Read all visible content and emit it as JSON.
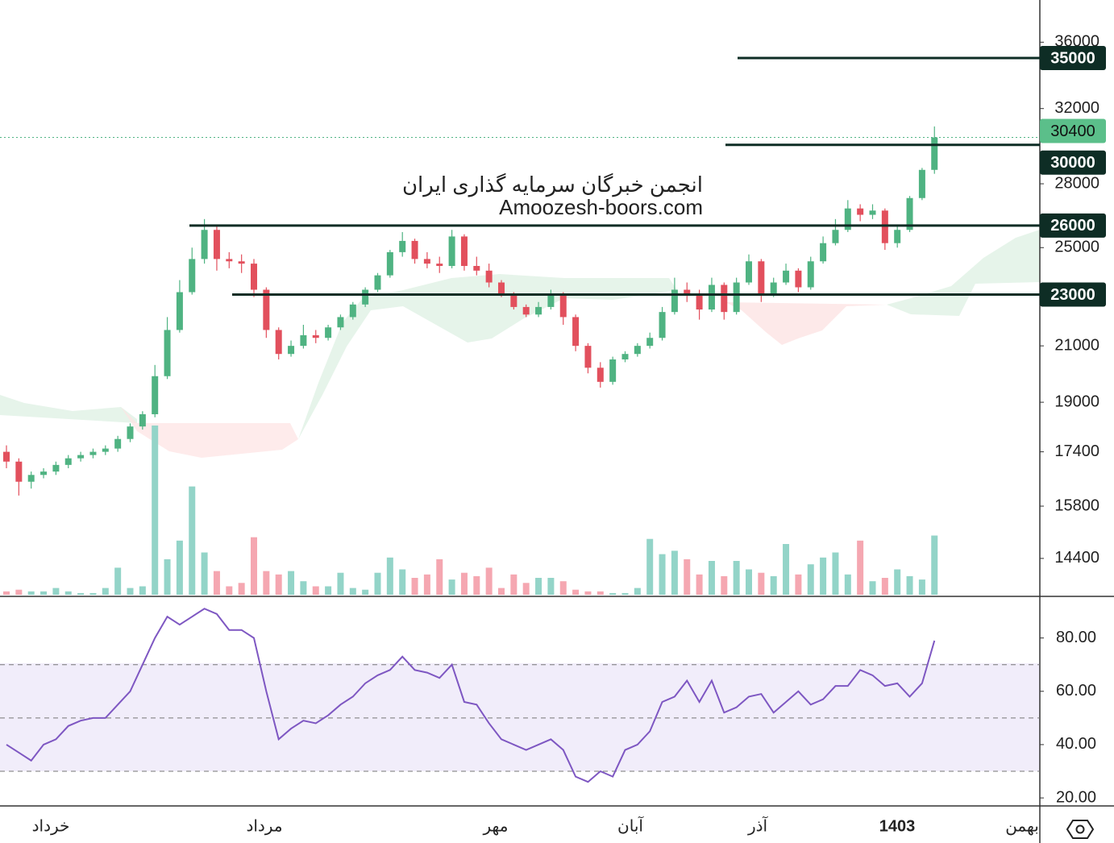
{
  "chart_data": [
    {
      "type": "candlestick",
      "watermark": [
        "انجمن خبرگان سرمایه گذاری ایران",
        "Amoozesh-boors.com"
      ],
      "log": true,
      "ylim": [
        13500,
        38800
      ],
      "yticks": [
        36000,
        32000,
        28000,
        25000,
        21000,
        19000,
        17400,
        15800,
        14400
      ],
      "levels": [
        35000,
        30000,
        26000,
        23000
      ],
      "last_price": 30400,
      "time_labels": [
        "خرداد",
        "مرداد",
        "مهر",
        "آبان",
        "آذر",
        "1403",
        "بهمن"
      ],
      "up_color": "#4fb382",
      "down_color": "#e2505d",
      "volume_up_color": "#93d4c8",
      "volume_down_color": "#f5a7b1",
      "vlim": [
        0,
        100
      ],
      "ohlc": [
        [
          17400,
          17600,
          16900,
          17100
        ],
        [
          17100,
          17200,
          16100,
          16500
        ],
        [
          16500,
          16800,
          16300,
          16700
        ],
        [
          16700,
          16900,
          16600,
          16800
        ],
        [
          16800,
          17100,
          16700,
          17000
        ],
        [
          17000,
          17300,
          16900,
          17200
        ],
        [
          17200,
          17400,
          17100,
          17300
        ],
        [
          17300,
          17500,
          17200,
          17400
        ],
        [
          17400,
          17600,
          17300,
          17500
        ],
        [
          17500,
          17900,
          17400,
          17800
        ],
        [
          17800,
          18300,
          17700,
          18200
        ],
        [
          18200,
          18700,
          18100,
          18600
        ],
        [
          18600,
          20300,
          18500,
          19900
        ],
        [
          19900,
          22100,
          19800,
          21600
        ],
        [
          21600,
          23600,
          21500,
          23100
        ],
        [
          23100,
          25000,
          23000,
          24500
        ],
        [
          24500,
          26300,
          24300,
          25800
        ],
        [
          25800,
          26000,
          24000,
          24500
        ],
        [
          24500,
          24800,
          24100,
          24400
        ],
        [
          24400,
          24700,
          23900,
          24300
        ],
        [
          24300,
          24500,
          22900,
          23200
        ],
        [
          23200,
          23300,
          21300,
          21600
        ],
        [
          21600,
          21700,
          20500,
          20700
        ],
        [
          20700,
          21200,
          20600,
          21000
        ],
        [
          21000,
          21800,
          20900,
          21400
        ],
        [
          21400,
          21600,
          21100,
          21300
        ],
        [
          21300,
          21800,
          21200,
          21700
        ],
        [
          21700,
          22200,
          21600,
          22100
        ],
        [
          22100,
          22700,
          22000,
          22600
        ],
        [
          22600,
          23300,
          22500,
          23200
        ],
        [
          23200,
          23900,
          23100,
          23800
        ],
        [
          23800,
          24900,
          23700,
          24800
        ],
        [
          24800,
          25700,
          24600,
          25300
        ],
        [
          25300,
          25400,
          24300,
          24500
        ],
        [
          24500,
          24800,
          24100,
          24300
        ],
        [
          24300,
          24600,
          23900,
          24200
        ],
        [
          24200,
          25800,
          24100,
          25500
        ],
        [
          25500,
          25600,
          24000,
          24200
        ],
        [
          24200,
          24600,
          23800,
          24000
        ],
        [
          24000,
          24300,
          23300,
          23500
        ],
        [
          23500,
          23600,
          22900,
          23000
        ],
        [
          23000,
          23100,
          22400,
          22500
        ],
        [
          22500,
          22600,
          22100,
          22200
        ],
        [
          22200,
          22700,
          22100,
          22500
        ],
        [
          22500,
          23200,
          22400,
          23000
        ],
        [
          23000,
          23100,
          21800,
          22100
        ],
        [
          22100,
          22200,
          20800,
          21000
        ],
        [
          21000,
          21100,
          20000,
          20200
        ],
        [
          20200,
          20400,
          19500,
          19700
        ],
        [
          19700,
          20600,
          19600,
          20500
        ],
        [
          20500,
          20800,
          20400,
          20700
        ],
        [
          20700,
          21100,
          20600,
          21000
        ],
        [
          21000,
          21500,
          20900,
          21300
        ],
        [
          21300,
          22500,
          21200,
          22300
        ],
        [
          22300,
          23700,
          22200,
          23200
        ],
        [
          23200,
          23500,
          22700,
          23000
        ],
        [
          23000,
          23200,
          22000,
          22400
        ],
        [
          22400,
          23700,
          22300,
          23400
        ],
        [
          23400,
          23500,
          22000,
          22300
        ],
        [
          22300,
          23700,
          22200,
          23500
        ],
        [
          23500,
          24700,
          23400,
          24400
        ],
        [
          24400,
          24500,
          22700,
          23000
        ],
        [
          23000,
          23700,
          22900,
          23500
        ],
        [
          23500,
          24300,
          23400,
          24000
        ],
        [
          24000,
          24100,
          23100,
          23300
        ],
        [
          23300,
          24600,
          23200,
          24400
        ],
        [
          24400,
          25500,
          24300,
          25200
        ],
        [
          25200,
          26300,
          25100,
          25800
        ],
        [
          25800,
          27200,
          25700,
          26800
        ],
        [
          26800,
          27000,
          26200,
          26500
        ],
        [
          26500,
          27000,
          26300,
          26700
        ],
        [
          26700,
          26800,
          24900,
          25200
        ],
        [
          25200,
          26000,
          25000,
          25800
        ],
        [
          25800,
          27400,
          25700,
          27300
        ],
        [
          27300,
          28800,
          27200,
          28700
        ],
        [
          28700,
          31000,
          28500,
          30400
        ]
      ],
      "volume": [
        2,
        3,
        2,
        2,
        4,
        2,
        1,
        1,
        4,
        16,
        4,
        5,
        100,
        21,
        32,
        64,
        25,
        14,
        5,
        7,
        34,
        14,
        12,
        14,
        8,
        5,
        5,
        13,
        4,
        3,
        13,
        22,
        15,
        10,
        12,
        21,
        9,
        13,
        11,
        16,
        4,
        12,
        7,
        10,
        10,
        8,
        3,
        2,
        2,
        1,
        1,
        4,
        33,
        24,
        26,
        21,
        12,
        20,
        11,
        20,
        15,
        13,
        11,
        30,
        12,
        18,
        22,
        25,
        12,
        32,
        8,
        10,
        15,
        11,
        9,
        35
      ]
    },
    {
      "type": "line",
      "color": "#7e57c2",
      "ylim": [
        17,
        95
      ],
      "yticks": [
        {
          "value": 80,
          "label": "80.00"
        },
        {
          "value": 60,
          "label": "60.00"
        },
        {
          "value": 40,
          "label": "40.00"
        },
        {
          "value": 20,
          "label": "20.00"
        }
      ],
      "bands": [
        70,
        50,
        30
      ],
      "values": [
        40,
        37,
        34,
        40,
        42,
        47,
        49,
        50,
        50,
        55,
        60,
        70,
        80,
        88,
        85,
        88,
        91,
        89,
        83,
        83,
        80,
        60,
        42,
        46,
        49,
        48,
        51,
        55,
        58,
        63,
        66,
        68,
        73,
        68,
        67,
        65,
        70,
        56,
        55,
        48,
        42,
        40,
        38,
        40,
        42,
        38,
        28,
        26,
        30,
        28,
        38,
        40,
        45,
        56,
        58,
        64,
        56,
        64,
        52,
        54,
        58,
        59,
        52,
        56,
        60,
        55,
        57,
        62,
        62,
        68,
        66,
        62,
        63,
        58,
        63,
        79
      ]
    }
  ]
}
